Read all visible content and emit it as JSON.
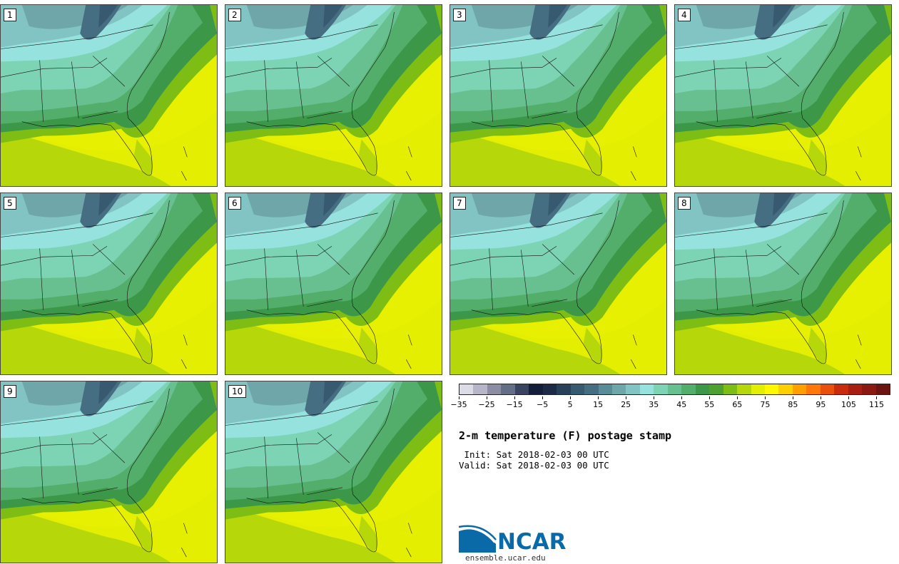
{
  "panels": [
    {
      "label": "1"
    },
    {
      "label": "2"
    },
    {
      "label": "3"
    },
    {
      "label": "4"
    },
    {
      "label": "5"
    },
    {
      "label": "6"
    },
    {
      "label": "7"
    },
    {
      "label": "8"
    },
    {
      "label": "9"
    },
    {
      "label": "10"
    }
  ],
  "colorbar": {
    "colors": [
      "#dcdce6",
      "#b6b6c8",
      "#8c8ca4",
      "#646e86",
      "#3a4460",
      "#141e3a",
      "#1c2a48",
      "#28405a",
      "#385a70",
      "#466e82",
      "#5a8c98",
      "#6ea6aa",
      "#82c4c4",
      "#96e2de",
      "#7cd4b4",
      "#68c090",
      "#52ae6a",
      "#3c9848",
      "#4ea030",
      "#7ebe14",
      "#b6d80a",
      "#e4ee00",
      "#fff800",
      "#ffd000",
      "#ffa000",
      "#ff7808",
      "#e8500c",
      "#c82c0c",
      "#a81e10",
      "#8a1a10",
      "#6c1410"
    ],
    "tick_labels": [
      "−35",
      "−25",
      "−15",
      "−5",
      "5",
      "15",
      "25",
      "35",
      "45",
      "55",
      "65",
      "75",
      "85",
      "95",
      "105",
      "115"
    ]
  },
  "title": "2-m temperature (F) postage stamp",
  "init": " Init: Sat 2018-02-03 00 UTC",
  "valid": "Valid: Sat 2018-02-03 00 UTC",
  "logo": {
    "text": "NCAR",
    "site": "ensemble.ucar.edu"
  },
  "colors": {
    "ocean_warm": "#e6f000",
    "ocean_mid": "#b6d80a",
    "land_cool": "#96e2de",
    "mountain": "#466e82",
    "brand": "#0a6aa8"
  }
}
